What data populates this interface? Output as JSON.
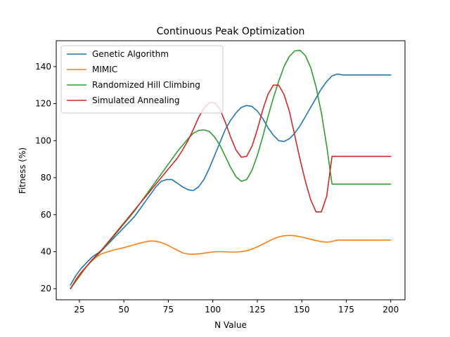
{
  "chart_data": {
    "type": "line",
    "title": "Continuous Peak Optimization",
    "xlabel": "N Value",
    "ylabel": "Fitness (%)",
    "xlim": [
      12,
      208
    ],
    "ylim": [
      14,
      154
    ],
    "xticks": [
      25,
      50,
      75,
      100,
      125,
      150,
      175,
      200
    ],
    "yticks": [
      20,
      40,
      60,
      80,
      100,
      120,
      140
    ],
    "grid": false,
    "legend_position": "top-left",
    "x": [
      20,
      23,
      26,
      29,
      32,
      35,
      38,
      41,
      44,
      47,
      50,
      53,
      56,
      59,
      62,
      65,
      68,
      71,
      74,
      77,
      80,
      83,
      86,
      89,
      92,
      95,
      98,
      101,
      104,
      107,
      110,
      113,
      116,
      119,
      122,
      125,
      128,
      131,
      134,
      137,
      140,
      143,
      146,
      149,
      152,
      155,
      158,
      161,
      164,
      167,
      170,
      173,
      176,
      179,
      182,
      185,
      188,
      191,
      194,
      197,
      200
    ],
    "series": [
      {
        "name": "Genetic Algorithm",
        "color": "#1f77b4",
        "values": [
          22,
          27,
          31,
          34,
          37,
          39,
          41,
          44,
          47,
          50,
          53,
          56,
          59,
          63,
          67,
          71,
          75,
          78,
          79,
          79,
          77,
          75,
          73.5,
          73,
          75,
          79,
          85,
          92,
          99,
          106,
          111,
          115,
          118,
          119,
          118.5,
          116,
          112,
          107,
          103,
          100,
          99.5,
          101,
          104,
          108,
          113,
          118,
          123,
          128,
          132,
          135,
          136,
          135.5,
          135.5,
          135.5,
          135.5,
          135.5,
          135.5,
          135.5,
          135.5,
          135.5,
          135.5
        ]
      },
      {
        "name": "MIMIC",
        "color": "#ff7f0e",
        "values": [
          20,
          25,
          29,
          32,
          35,
          37.5,
          39,
          40,
          40.8,
          41.5,
          42.2,
          43,
          43.8,
          44.6,
          45.3,
          45.8,
          45.6,
          45,
          43.8,
          42.3,
          40.8,
          39.4,
          38.7,
          38.6,
          38.8,
          39.2,
          39.6,
          39.9,
          40,
          39.9,
          39.8,
          39.8,
          40,
          40.5,
          41.4,
          42.6,
          44,
          45.5,
          46.9,
          48,
          48.6,
          48.8,
          48.6,
          48.1,
          47.4,
          46.7,
          46,
          45.4,
          45.2,
          45.5,
          46.3,
          46.3,
          46.3,
          46.3,
          46.3,
          46.3,
          46.3,
          46.3,
          46.3,
          46.3,
          46.3
        ]
      },
      {
        "name": "Randomized Hill Climbing",
        "color": "#2ca02c",
        "values": [
          20,
          24,
          28,
          32,
          35,
          38,
          41,
          44.5,
          48,
          51.5,
          55,
          58.5,
          62,
          66,
          70,
          74,
          78,
          82,
          86,
          90,
          94,
          97.5,
          101,
          104,
          105.5,
          105.8,
          105,
          102,
          97.5,
          91.5,
          85.5,
          80.5,
          78,
          79,
          84,
          92,
          102,
          113,
          123,
          132,
          140,
          145.5,
          148.5,
          148.8,
          146,
          139.5,
          129,
          115,
          97,
          76.5,
          76.5,
          76.5,
          76.5,
          76.5,
          76.5,
          76.5,
          76.5,
          76.5,
          76.5,
          76.5,
          76.5
        ]
      },
      {
        "name": "Simulated Annealing",
        "color": "#d62728",
        "values": [
          20,
          24.5,
          28.5,
          32,
          35.5,
          38.5,
          41.5,
          45,
          48.5,
          52,
          55.5,
          59,
          62.5,
          66,
          69.5,
          73,
          76.5,
          80,
          83.5,
          87,
          90.5,
          95,
          100,
          106,
          112.5,
          117.5,
          120.5,
          120.5,
          117,
          110,
          102,
          95,
          91,
          91.5,
          97,
          106,
          116.5,
          125,
          130,
          130,
          125,
          116,
          103,
          90,
          78,
          68,
          61.5,
          61.5,
          70,
          91.5,
          91.5,
          91.5,
          91.5,
          91.5,
          91.5,
          91.5,
          91.5,
          91.5,
          91.5,
          91.5,
          91.5
        ]
      }
    ]
  }
}
